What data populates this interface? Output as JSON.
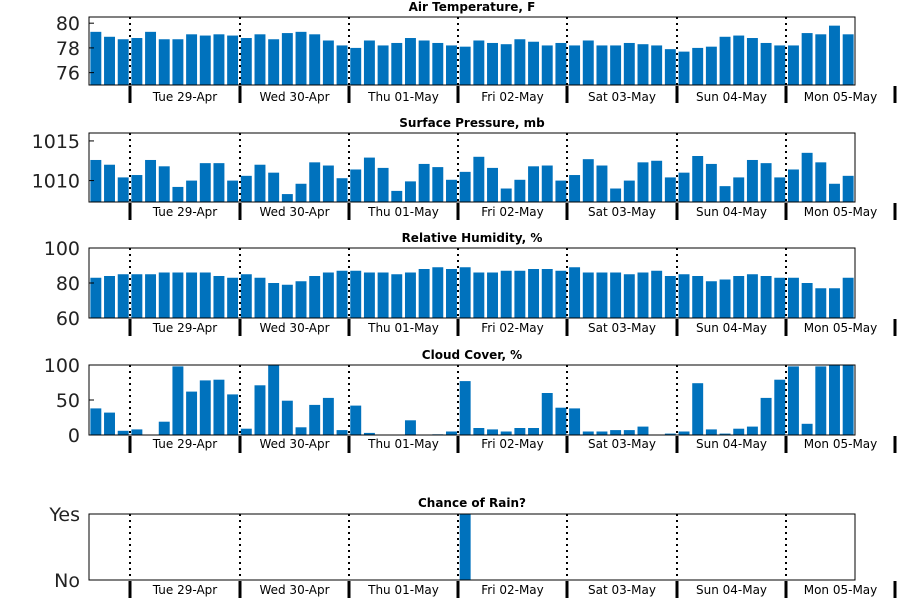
{
  "day_labels": [
    "Tue 29-Apr",
    "Wed 30-Apr",
    "Thu 01-May",
    "Fri 02-May",
    "Sat 03-May",
    "Sun 04-May",
    "Mon 05-May"
  ],
  "colors": {
    "bar": "#0072bd",
    "axis": "#000000"
  },
  "chart_data": [
    {
      "type": "bar",
      "title": "Air Temperature, F",
      "yticks": [
        "76",
        "78",
        "80"
      ],
      "ylim": [
        75,
        80.5
      ],
      "values": [
        79.3,
        78.9,
        78.7,
        78.8,
        79.3,
        78.7,
        78.7,
        79.1,
        79.0,
        79.1,
        79.0,
        78.8,
        79.1,
        78.7,
        79.2,
        79.3,
        79.1,
        78.6,
        78.2,
        78.0,
        78.6,
        78.2,
        78.4,
        78.8,
        78.6,
        78.4,
        78.2,
        78.1,
        78.6,
        78.4,
        78.3,
        78.7,
        78.5,
        78.2,
        78.4,
        78.2,
        78.6,
        78.2,
        78.2,
        78.4,
        78.3,
        78.2,
        77.9,
        77.7,
        78.0,
        78.1,
        78.9,
        79.0,
        78.8,
        78.4,
        78.2,
        78.2,
        79.2,
        79.1,
        79.8,
        79.1
      ]
    },
    {
      "type": "bar",
      "title": "Surface Pressure, mb",
      "yticks": [
        "1010",
        "1015"
      ],
      "ylim": [
        1007.3,
        1016.0
      ],
      "values": [
        1012.6,
        1012.0,
        1010.4,
        1010.7,
        1012.6,
        1011.8,
        1009.2,
        1010.0,
        1012.2,
        1012.2,
        1010.0,
        1010.6,
        1012.0,
        1011.0,
        1008.3,
        1009.6,
        1012.3,
        1011.9,
        1010.3,
        1011.4,
        1012.9,
        1011.6,
        1008.7,
        1009.9,
        1012.1,
        1011.7,
        1010.1,
        1011.1,
        1013.0,
        1011.6,
        1009.0,
        1010.1,
        1011.8,
        1011.9,
        1010.0,
        1010.7,
        1012.7,
        1011.9,
        1009.0,
        1010.0,
        1012.3,
        1012.5,
        1010.4,
        1011.0,
        1013.1,
        1012.1,
        1009.3,
        1010.4,
        1012.6,
        1012.2,
        1010.4,
        1011.4,
        1013.5,
        1012.3,
        1009.6,
        1010.6
      ]
    },
    {
      "type": "bar",
      "title": "Relative Humidity, %",
      "yticks": [
        "60",
        "80",
        "100"
      ],
      "ylim": [
        60,
        100
      ],
      "values": [
        83,
        84,
        85,
        85,
        85,
        86,
        86,
        86,
        86,
        84,
        83,
        85,
        83,
        80,
        79,
        81,
        84,
        86,
        87,
        87,
        86,
        86,
        85,
        86,
        88,
        89,
        88,
        89,
        86,
        86,
        87,
        87,
        88,
        88,
        87,
        89,
        86,
        86,
        86,
        85,
        86,
        87,
        84,
        85,
        84,
        81,
        82,
        84,
        85,
        84,
        83,
        83,
        80,
        77,
        77,
        83
      ]
    },
    {
      "type": "bar",
      "title": "Cloud Cover, %",
      "yticks": [
        "0",
        "50",
        "100"
      ],
      "ylim": [
        0,
        100
      ],
      "values": [
        38,
        32,
        6,
        8,
        0,
        19,
        98,
        62,
        78,
        79,
        58,
        9,
        71,
        100,
        49,
        11,
        43,
        53,
        7,
        42,
        3,
        0,
        0,
        21,
        0,
        1,
        5,
        77,
        10,
        8,
        5,
        10,
        10,
        60,
        39,
        38,
        5,
        5,
        7,
        7,
        12,
        0,
        2,
        5,
        74,
        8,
        2,
        9,
        12,
        53,
        79,
        98,
        16,
        98,
        100,
        100
      ]
    },
    {
      "type": "bar",
      "title": "Chance of Rain?",
      "yticks": [
        "No",
        "Yes"
      ],
      "ylim": [
        0,
        1
      ],
      "values": [
        0,
        0,
        0,
        0,
        0,
        0,
        0,
        0,
        0,
        0,
        0,
        0,
        0,
        0,
        0,
        0,
        0,
        0,
        0,
        0,
        0,
        0,
        0,
        0,
        0,
        0,
        0,
        1,
        0,
        0,
        0,
        0,
        0,
        0,
        0,
        0,
        0,
        0,
        0,
        0,
        0,
        0,
        0,
        0,
        0,
        0,
        0,
        0,
        0,
        0,
        0,
        0,
        0,
        0,
        0,
        0
      ]
    }
  ]
}
